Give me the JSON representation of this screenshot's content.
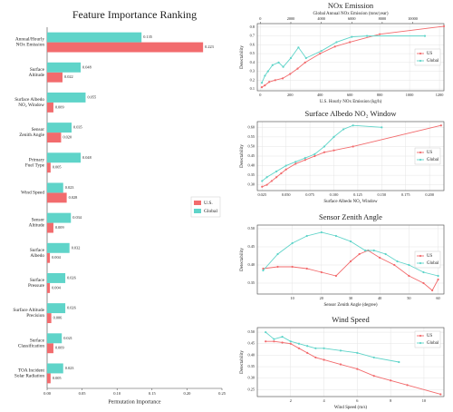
{
  "chart_data": [
    {
      "type": "barh",
      "title": "Feature Importance Ranking",
      "xlabel": "Permutation Importance",
      "categories": [
        "Annual/Hourly\nNOx Emission",
        "Surface\nAltitude",
        "Surface Albedo\nNO₂ Window",
        "Sensor\nZenith Angle",
        "Primary\nFuel Type",
        "Wind Speed",
        "Sensor\nAltitude",
        "Surface\nAlbedo",
        "Surface\nPressure",
        "Surface Altitude\nPrecision",
        "Surface\nClassification",
        "TOA Incident\nSolar Radiation"
      ],
      "series": [
        {
          "name": "U.S.",
          "color": "#f26b6d",
          "values": [
            0.223,
            0.022,
            0.009,
            0.02,
            0.005,
            0.028,
            0.009,
            0.004,
            0.004,
            0.006,
            0.009,
            0.005
          ],
          "value_labels": [
            "0.223",
            "0.022",
            "0.009",
            "0.020",
            "0.005",
            "0.028",
            "0.009",
            "0.004",
            "0.004",
            "0.006",
            "0.009",
            "0.005"
          ]
        },
        {
          "name": "Global",
          "color": "#5fd4c9",
          "values": [
            0.135,
            0.048,
            0.055,
            0.035,
            0.048,
            0.023,
            0.034,
            0.032,
            0.026,
            0.026,
            0.021,
            0.023
          ],
          "value_labels": [
            "0.135",
            "0.048",
            "0.055",
            "0.035",
            "0.048",
            "0.023",
            "0.034",
            "0.032",
            "0.026",
            "0.026",
            "0.021",
            "0.023"
          ]
        }
      ],
      "xlim": [
        0,
        0.25
      ],
      "xticks": [
        {
          "value": 0,
          "label": "0.00"
        },
        {
          "value": 0.05,
          "label": "0.05"
        },
        {
          "value": 0.1,
          "label": "0.10"
        },
        {
          "value": 0.15,
          "label": "0.15"
        },
        {
          "value": 0.2,
          "label": "0.20"
        },
        {
          "value": 0.25,
          "label": "0.25"
        }
      ],
      "legend": "center right"
    },
    {
      "type": "line",
      "title": "NOx Emission",
      "xlabel": "U.S. Hourly NOx Emission (kg/h)",
      "x2label": "Global Annual NOx Emission (tons/year)",
      "ylabel": "Detectability",
      "series": [
        {
          "name": "US",
          "color": "#f26b6d",
          "x": [
            10,
            30,
            60,
            100,
            150,
            200,
            250,
            300,
            400,
            500,
            600,
            800,
            1230
          ],
          "values": [
            0.12,
            0.14,
            0.18,
            0.2,
            0.22,
            0.27,
            0.33,
            0.4,
            0.5,
            0.58,
            0.63,
            0.72,
            0.81
          ]
        },
        {
          "name": "Global",
          "color": "#5fd4c9",
          "axis": "x2",
          "x": [
            100,
            300,
            500,
            800,
            1200,
            1500,
            2000,
            2500,
            3000,
            4000,
            5000,
            6000,
            7000,
            10800
          ],
          "values": [
            0.17,
            0.25,
            0.3,
            0.37,
            0.4,
            0.35,
            0.45,
            0.57,
            0.45,
            0.53,
            0.63,
            0.69,
            0.7,
            0.7
          ]
        }
      ],
      "xlim": [
        -20,
        1230
      ],
      "xticks": [
        0,
        200,
        400,
        600,
        800,
        1000,
        1200
      ],
      "x2lim": [
        -200,
        12050
      ],
      "x2ticks": [
        0,
        2000,
        4000,
        6000,
        8000,
        10000
      ],
      "ylim": [
        0.08,
        0.84
      ],
      "yticks": [
        0.1,
        0.2,
        0.3,
        0.4,
        0.5,
        0.6,
        0.7,
        0.8
      ],
      "grid": true,
      "legend": "center right"
    },
    {
      "type": "line",
      "title": "Surface Albedo NO₂ Window",
      "xlabel": "Surface Albedo NO₂ Window",
      "ylabel": "Detectability",
      "series": [
        {
          "name": "US",
          "color": "#f26b6d",
          "x": [
            0.025,
            0.03,
            0.035,
            0.04,
            0.045,
            0.05,
            0.06,
            0.07,
            0.08,
            0.09,
            0.1,
            0.12,
            0.212
          ],
          "values": [
            0.29,
            0.3,
            0.32,
            0.34,
            0.36,
            0.38,
            0.41,
            0.43,
            0.45,
            0.47,
            0.48,
            0.5,
            0.61
          ]
        },
        {
          "name": "Global",
          "color": "#5fd4c9",
          "x": [
            0.025,
            0.03,
            0.04,
            0.05,
            0.06,
            0.07,
            0.08,
            0.09,
            0.1,
            0.11,
            0.12,
            0.15
          ],
          "values": [
            0.32,
            0.34,
            0.37,
            0.4,
            0.42,
            0.44,
            0.46,
            0.5,
            0.55,
            0.59,
            0.61,
            0.6
          ]
        }
      ],
      "xlim": [
        0.02,
        0.215
      ],
      "xticks": [
        {
          "value": 0.025,
          "label": "0.025"
        },
        {
          "value": 0.05,
          "label": "0.050"
        },
        {
          "value": 0.075,
          "label": "0.075"
        },
        {
          "value": 0.1,
          "label": "0.100"
        },
        {
          "value": 0.125,
          "label": "0.125"
        },
        {
          "value": 0.15,
          "label": "0.150"
        },
        {
          "value": 0.175,
          "label": "0.175"
        },
        {
          "value": 0.2,
          "label": "0.200"
        }
      ],
      "ylim": [
        0.27,
        0.63
      ],
      "yticks": [
        {
          "value": 0.3,
          "label": "0.30"
        },
        0.35,
        {
          "value": 0.4,
          "label": "0.40"
        },
        0.45,
        {
          "value": 0.5,
          "label": "0.50"
        },
        0.55,
        {
          "value": 0.6,
          "label": "0.60"
        }
      ],
      "grid": true,
      "legend": "center right"
    },
    {
      "type": "line",
      "title": "Sensor Zenith Angle",
      "xlabel": "Sensor Zenith Angle (degree)",
      "ylabel": "Detectability",
      "series": [
        {
          "name": "US",
          "color": "#f26b6d",
          "x": [
            0,
            5,
            10,
            15,
            20,
            25,
            30,
            33,
            36,
            40,
            45,
            50,
            55,
            58,
            60
          ],
          "values": [
            0.39,
            0.395,
            0.395,
            0.39,
            0.38,
            0.37,
            0.41,
            0.43,
            0.44,
            0.42,
            0.4,
            0.37,
            0.35,
            0.33,
            0.36
          ]
        },
        {
          "name": "Global",
          "color": "#5fd4c9",
          "x": [
            0,
            5,
            10,
            15,
            20,
            25,
            30,
            35,
            38,
            42,
            46,
            50,
            55,
            60
          ],
          "values": [
            0.385,
            0.43,
            0.46,
            0.48,
            0.49,
            0.48,
            0.465,
            0.44,
            0.44,
            0.43,
            0.41,
            0.4,
            0.38,
            0.37
          ]
        }
      ],
      "xlim": [
        -2,
        62
      ],
      "xticks": [
        10,
        20,
        30,
        40,
        50,
        60
      ],
      "ylim": [
        0.32,
        0.51
      ],
      "yticks": [
        0.35,
        {
          "value": 0.4,
          "label": "0.40"
        },
        0.45,
        {
          "value": 0.5,
          "label": "0.50"
        }
      ],
      "grid": true,
      "legend": "center right"
    },
    {
      "type": "line",
      "title": "Wind Speed",
      "xlabel": "Wind Speed (m/s)",
      "ylabel": "Detectability",
      "series": [
        {
          "name": "US",
          "color": "#f26b6d",
          "x": [
            0.5,
            1,
            1.5,
            2,
            2.5,
            3,
            3.5,
            4,
            5,
            6,
            7,
            8,
            9,
            11
          ],
          "values": [
            0.46,
            0.46,
            0.455,
            0.45,
            0.43,
            0.41,
            0.39,
            0.38,
            0.36,
            0.34,
            0.31,
            0.29,
            0.27,
            0.23
          ]
        },
        {
          "name": "Global",
          "color": "#5fd4c9",
          "x": [
            0.5,
            1,
            1.5,
            2,
            2.5,
            3,
            3.5,
            4,
            5,
            6,
            7,
            8.5
          ],
          "values": [
            0.5,
            0.47,
            0.48,
            0.46,
            0.45,
            0.44,
            0.43,
            0.43,
            0.42,
            0.41,
            0.39,
            0.37
          ]
        }
      ],
      "xlim": [
        0,
        11.2
      ],
      "xticks": [
        2,
        4,
        6,
        8,
        10
      ],
      "ylim": [
        0.22,
        0.52
      ],
      "yticks": [
        0.25,
        {
          "value": 0.3,
          "label": "0.30"
        },
        0.35,
        {
          "value": 0.4,
          "label": "0.40"
        },
        0.45,
        {
          "value": 0.5,
          "label": "0.50"
        }
      ],
      "grid": true,
      "legend": "upper right"
    }
  ]
}
